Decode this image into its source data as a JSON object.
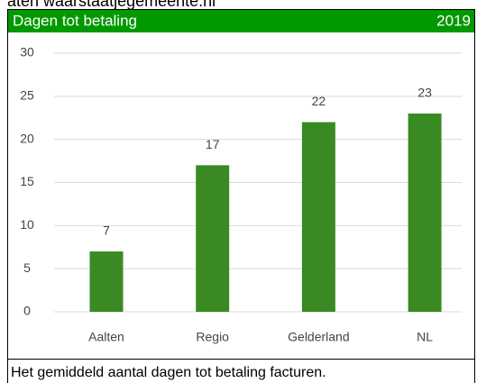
{
  "source": "aten waarstaatjegemeente.nl",
  "chart_data": {
    "type": "bar",
    "title": "Dagen tot betaling",
    "subtitle": "2019",
    "categories": [
      "Aalten",
      "Regio",
      "Gelderland",
      "NL"
    ],
    "values": [
      7,
      17,
      22,
      23
    ],
    "color": "#3a8a24",
    "ylim": [
      0,
      30
    ],
    "yticks": [
      0,
      5,
      10,
      15,
      20,
      25,
      30
    ],
    "grid": true,
    "caption": "Het gemiddeld aantal dagen tot betaling facturen."
  }
}
